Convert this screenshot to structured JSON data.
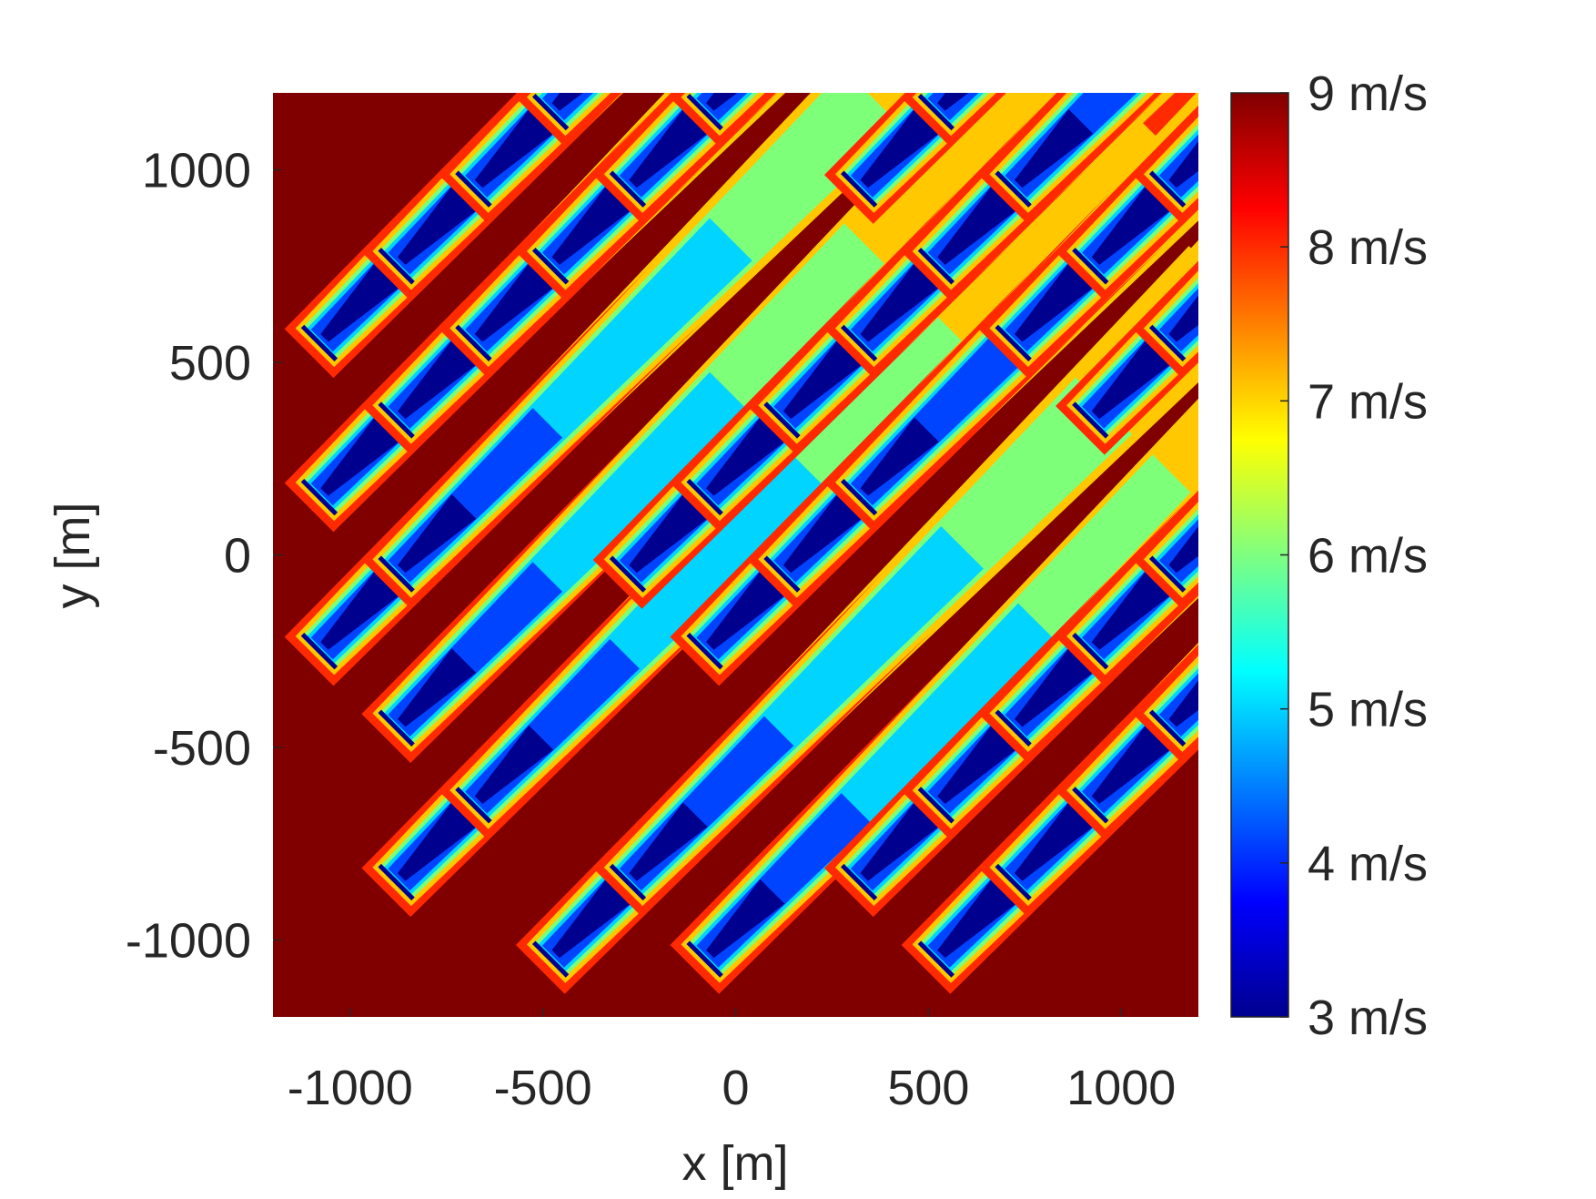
{
  "chart_data": {
    "type": "heatmap",
    "title": "",
    "xlabel": "x [m]",
    "ylabel": "y [m]",
    "xlim": [
      -1200,
      1200
    ],
    "ylim": [
      -1200,
      1200
    ],
    "x_ticks": [
      -1000,
      -500,
      0,
      500,
      1000
    ],
    "y_ticks": [
      -1000,
      -500,
      0,
      500,
      1000
    ],
    "x_tick_labels": [
      "-1000",
      "-500",
      "0",
      "500",
      "1000"
    ],
    "y_tick_labels": [
      "-1000",
      "-500",
      "0",
      "500",
      "1000"
    ],
    "wind_direction_deg": 225,
    "free_stream_speed": 9,
    "colorbar": {
      "min": 3,
      "max": 9,
      "tick_values": [
        3,
        4,
        5,
        6,
        7,
        8,
        9
      ],
      "tick_labels": [
        "3 m/s",
        "4 m/s",
        "5 m/s",
        "6 m/s",
        "7 m/s",
        "8 m/s",
        "9 m/s"
      ],
      "colormap": "jet"
    },
    "contour_levels": [
      9,
      8,
      7,
      6,
      5,
      4,
      3
    ],
    "level_colors": [
      "#800000",
      "#ff2a00",
      "#ffc800",
      "#7dff7a",
      "#00d4ff",
      "#0044ff",
      "#00008f"
    ],
    "turbines": [
      {
        "x": -1080,
        "y": 550
      },
      {
        "x": -880,
        "y": 750
      },
      {
        "x": -680,
        "y": 950
      },
      {
        "x": -480,
        "y": 1150
      },
      {
        "x": -1080,
        "y": 150
      },
      {
        "x": -880,
        "y": 350
      },
      {
        "x": -680,
        "y": 550
      },
      {
        "x": -480,
        "y": 750
      },
      {
        "x": -280,
        "y": 950
      },
      {
        "x": -80,
        "y": 1150
      },
      {
        "x": -1080,
        "y": -250
      },
      {
        "x": -880,
        "y": -50
      },
      {
        "x": -880,
        "y": -450
      },
      {
        "x": -880,
        "y": -850
      },
      {
        "x": -680,
        "y": -650
      },
      {
        "x": -480,
        "y": -1050
      },
      {
        "x": -280,
        "y": -850
      },
      {
        "x": -280,
        "y": -50
      },
      {
        "x": -80,
        "y": 150
      },
      {
        "x": 120,
        "y": 350
      },
      {
        "x": 320,
        "y": 550
      },
      {
        "x": 520,
        "y": 750
      },
      {
        "x": 720,
        "y": 950
      },
      {
        "x": -80,
        "y": -250
      },
      {
        "x": 120,
        "y": -50
      },
      {
        "x": 320,
        "y": 150
      },
      {
        "x": -80,
        "y": -1050
      },
      {
        "x": 320,
        "y": 950
      },
      {
        "x": 520,
        "y": 1150
      },
      {
        "x": 320,
        "y": -850
      },
      {
        "x": 520,
        "y": -650
      },
      {
        "x": 720,
        "y": -450
      },
      {
        "x": 920,
        "y": -250
      },
      {
        "x": 1120,
        "y": -50
      },
      {
        "x": 520,
        "y": -1050
      },
      {
        "x": 720,
        "y": -850
      },
      {
        "x": 920,
        "y": -650
      },
      {
        "x": 1120,
        "y": -450
      },
      {
        "x": 720,
        "y": 550
      },
      {
        "x": 920,
        "y": 750
      },
      {
        "x": 1120,
        "y": 950
      },
      {
        "x": 920,
        "y": 350
      },
      {
        "x": 1120,
        "y": 550
      }
    ]
  }
}
